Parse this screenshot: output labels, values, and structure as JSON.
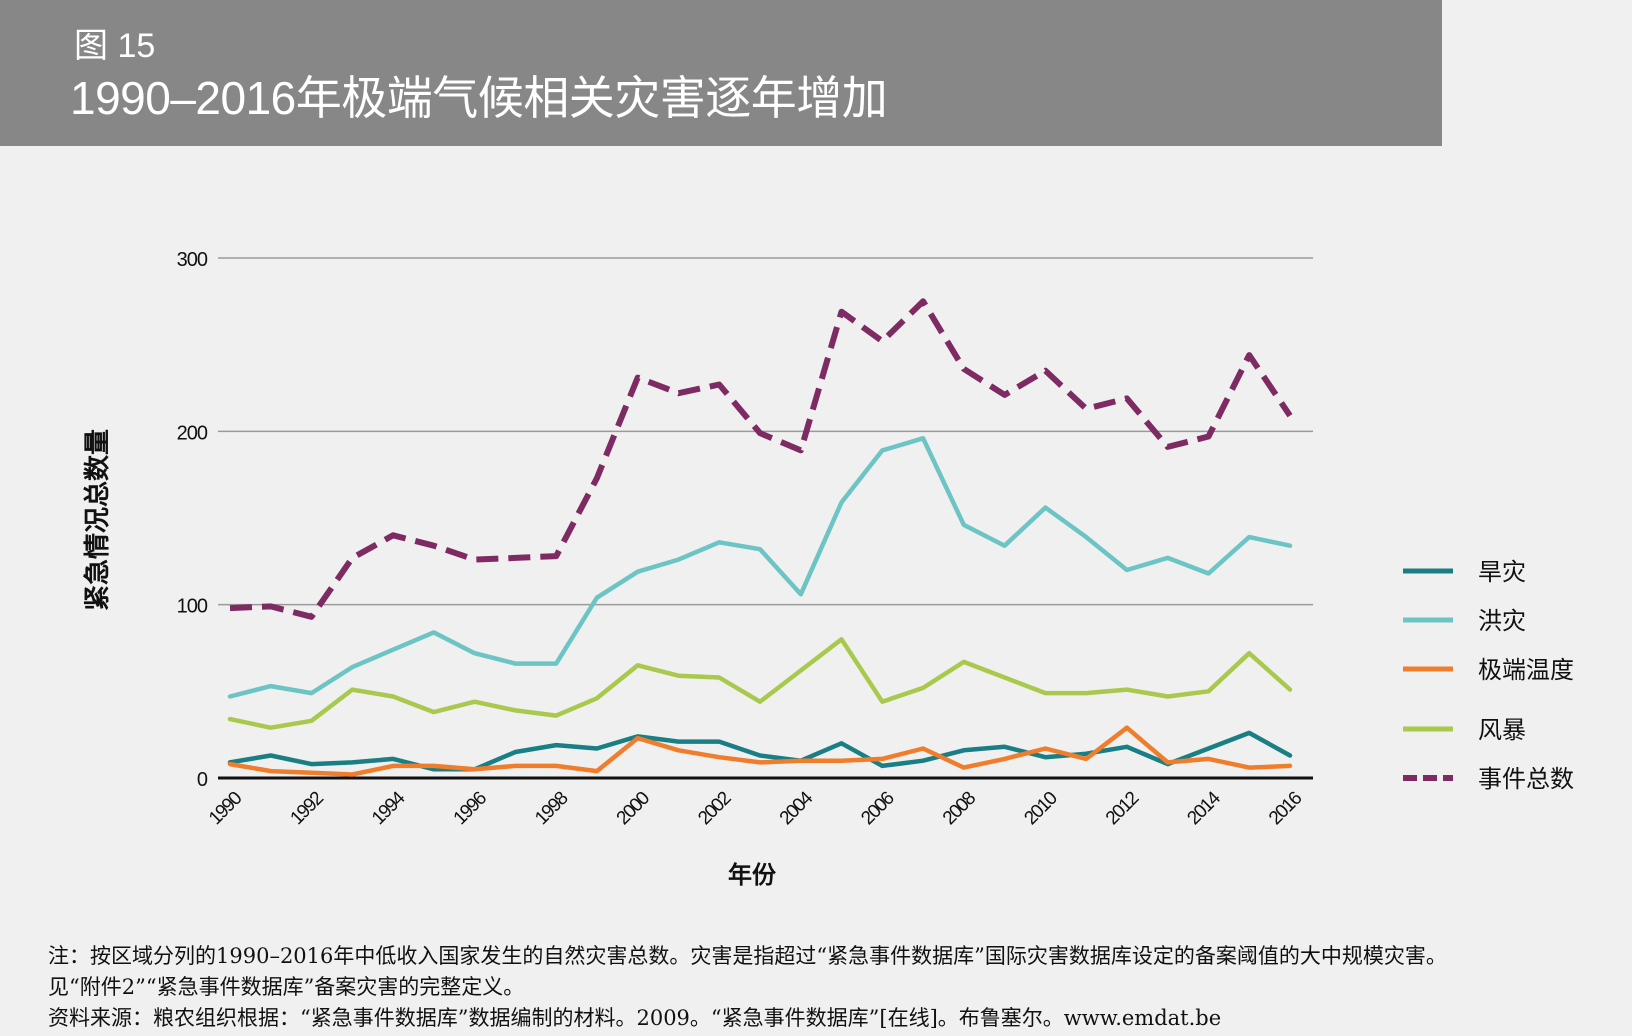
{
  "header": {
    "figure_label": "图 15",
    "title": "1990–2016年极端气候相关灾害逐年增加"
  },
  "notes": {
    "line1": "注：按区域分列的1990–2016年中低收入国家发生的自然灾害总数。灾害是指超过“紧急事件数据库”国际灾害数据库设定的备案阈值的大中规模灾害。",
    "line2": "见“附件2”“紧急事件数据库”备案灾害的完整定义。",
    "line3": "资料来源：粮农组织根据：“紧急事件数据库”数据编制的材料。2009。“紧急事件数据库”[在线]。布鲁塞尔。www.emdat.be"
  },
  "chart_data": {
    "type": "line",
    "xlabel": "年份",
    "ylabel": "紧急情况总数量",
    "ylim": [
      0,
      300
    ],
    "yticks": [
      0,
      100,
      200,
      300
    ],
    "x": [
      1990,
      1991,
      1992,
      1993,
      1994,
      1995,
      1996,
      1997,
      1998,
      1999,
      2000,
      2001,
      2002,
      2003,
      2004,
      2005,
      2006,
      2007,
      2008,
      2009,
      2010,
      2011,
      2012,
      2013,
      2014,
      2015,
      2016
    ],
    "xtick_labels": [
      "1990",
      "1992",
      "1994",
      "1996",
      "1998",
      "2000",
      "2002",
      "2004",
      "2006",
      "2008",
      "2010",
      "2012",
      "2014",
      "2016"
    ],
    "grid": "horizontal",
    "legend_position": "right",
    "series": [
      {
        "name": "旱灾",
        "color": "#1a7f84",
        "dashed": false,
        "values": [
          9,
          13,
          8,
          9,
          11,
          5,
          5,
          15,
          19,
          17,
          24,
          21,
          21,
          13,
          10,
          20,
          7,
          10,
          16,
          18,
          12,
          14,
          18,
          8,
          17,
          26,
          13
        ]
      },
      {
        "name": "洪灾",
        "color": "#6cc4c4",
        "dashed": false,
        "values": [
          47,
          53,
          49,
          64,
          74,
          84,
          72,
          66,
          66,
          104,
          119,
          126,
          136,
          132,
          106,
          159,
          189,
          196,
          146,
          134,
          156,
          139,
          120,
          127,
          118,
          139,
          134
        ]
      },
      {
        "name": "极端温度",
        "color": "#ef7d2b",
        "dashed": false,
        "values": [
          8,
          4,
          3,
          2,
          7,
          7,
          5,
          7,
          7,
          4,
          23,
          16,
          12,
          9,
          10,
          10,
          11,
          17,
          6,
          11,
          17,
          11,
          29,
          9,
          11,
          6,
          7
        ]
      },
      {
        "name": "风暴",
        "color": "#a9c94e",
        "dashed": false,
        "values": [
          34,
          29,
          33,
          51,
          47,
          38,
          44,
          39,
          36,
          46,
          65,
          59,
          58,
          44,
          62,
          80,
          44,
          52,
          67,
          58,
          49,
          49,
          51,
          47,
          50,
          72,
          51
        ]
      },
      {
        "name": "事件总数",
        "color": "#7e2b64",
        "dashed": true,
        "values": [
          98,
          99,
          93,
          127,
          140,
          134,
          126,
          127,
          128,
          173,
          231,
          222,
          227,
          199,
          189,
          269,
          252,
          275,
          236,
          221,
          235,
          213,
          219,
          191,
          197,
          244,
          209
        ]
      }
    ]
  }
}
